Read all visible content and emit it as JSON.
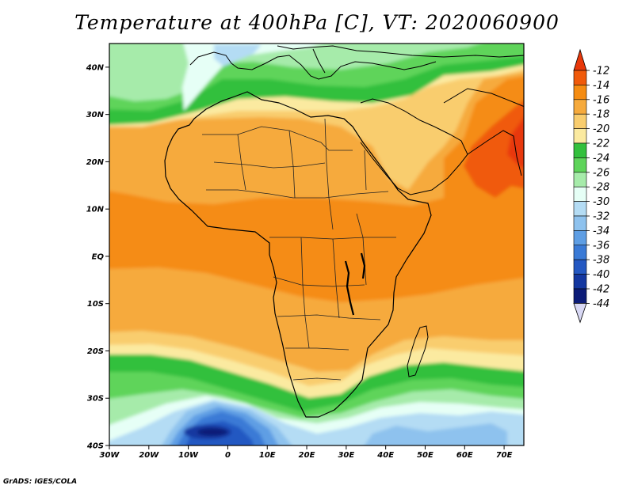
{
  "title": "Temperature at 400hPa [C], VT: 2020060900",
  "credit": "GrADS: IGES/COLA",
  "map": {
    "lon_range": [
      -30,
      75
    ],
    "lat_range": [
      -40,
      45
    ],
    "lat_ticks": [
      {
        "lat": 40,
        "label": "40N"
      },
      {
        "lat": 30,
        "label": "30N"
      },
      {
        "lat": 20,
        "label": "20N"
      },
      {
        "lat": 10,
        "label": "10N"
      },
      {
        "lat": 0,
        "label": "EQ"
      },
      {
        "lat": -10,
        "label": "10S"
      },
      {
        "lat": -20,
        "label": "20S"
      },
      {
        "lat": -30,
        "label": "30S"
      },
      {
        "lat": -40,
        "label": "40S"
      }
    ],
    "lon_ticks": [
      {
        "lon": -30,
        "label": "30W"
      },
      {
        "lon": -20,
        "label": "20W"
      },
      {
        "lon": -10,
        "label": "10W"
      },
      {
        "lon": 0,
        "label": "0"
      },
      {
        "lon": 10,
        "label": "10E"
      },
      {
        "lon": 20,
        "label": "20E"
      },
      {
        "lon": 30,
        "label": "30E"
      },
      {
        "lon": 40,
        "label": "40E"
      },
      {
        "lon": 50,
        "label": "50E"
      },
      {
        "lon": 60,
        "label": "60E"
      },
      {
        "lon": 70,
        "label": "70E"
      }
    ]
  },
  "colorbar": {
    "levels": [
      "-12",
      "-14",
      "-16",
      "-18",
      "-20",
      "-22",
      "-24",
      "-26",
      "-28",
      "-30",
      "-32",
      "-34",
      "-36",
      "-38",
      "-40",
      "-42",
      "-44"
    ],
    "colors": [
      "#f05a0a",
      "#f58c12",
      "#f6aa3c",
      "#f9cd6e",
      "#fbeaa0",
      "#33c03d",
      "#5ed45a",
      "#a6ebaa",
      "#e6fff6",
      "#b4dcf4",
      "#8ec2ee",
      "#5e9ee4",
      "#3a7ad6",
      "#2458c2",
      "#1437a0",
      "#0c1c78"
    ],
    "top_arrow_color": "#e8380a",
    "bottom_arrow_color": "#d8d8f4"
  },
  "color_key": {
    "t-12": "#e8380a",
    "t-14": "#f05a0a",
    "t-16": "#f58c12",
    "t-18": "#f6aa3c",
    "t-20": "#f9cd6e",
    "t-22": "#fbeaa0",
    "t-24": "#33c03d",
    "t-26": "#5ed45a",
    "t-28": "#a6ebaa",
    "t-30": "#e6fff6",
    "t-32": "#b4dcf4",
    "t-34": "#8ec2ee",
    "t-36": "#5e9ee4",
    "t-38": "#3a7ad6",
    "t-40": "#2458c2",
    "t-42": "#1437a0",
    "t-44": "#0c1c78"
  }
}
